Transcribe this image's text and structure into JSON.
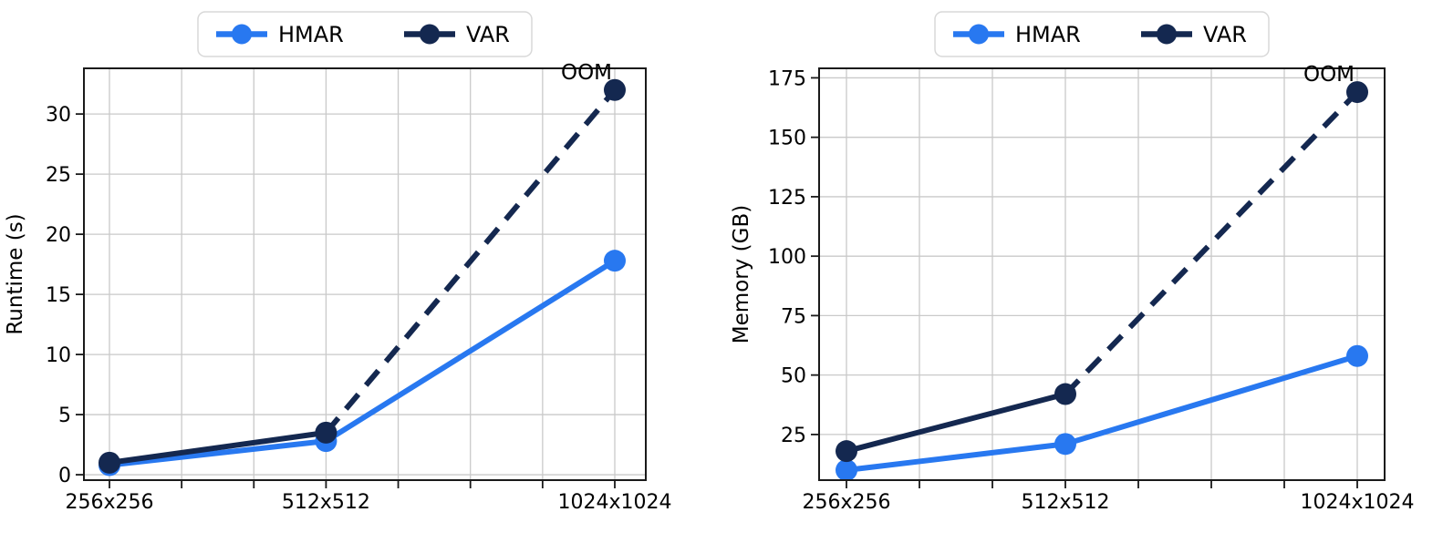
{
  "figure": {
    "background": "#ffffff",
    "description": "HMAR vs VAR efficiency comparison across image resolutions"
  },
  "colors": {
    "hmar": "#2878f0",
    "var": "#142850",
    "gridline": "#c9c9c9",
    "spine": "#1a1a1a",
    "text": "#000000",
    "legend_border": "#d8d8d8",
    "background": "#ffffff"
  },
  "chart_data": [
    {
      "name": "runtime-chart",
      "type": "line",
      "title": "",
      "xlabel": "",
      "ylabel": "Runtime (s)",
      "categories": [
        "256x256",
        "512x512",
        "1024x1024"
      ],
      "category_tick_indices": [
        0,
        3,
        7
      ],
      "minor_vertical_gridlines": 8,
      "grid": true,
      "yticks": [
        0,
        5,
        10,
        15,
        20,
        25,
        30
      ],
      "ylim": [
        -0.45,
        33.8
      ],
      "legend_position": "top-center",
      "series": [
        {
          "name": "HMAR",
          "color": "#2878f0",
          "marker": "circle",
          "line": "solid",
          "dashed_from": null,
          "values": [
            0.8,
            2.8,
            17.8
          ]
        },
        {
          "name": "VAR",
          "color": "#142850",
          "marker": "circle",
          "line": "solid-then-dashed",
          "dashed_from": 1,
          "values": [
            1.0,
            3.5,
            32.0
          ]
        }
      ],
      "annotation": {
        "text": "OOM",
        "series": "VAR",
        "point_index": 2
      }
    },
    {
      "name": "memory-chart",
      "type": "line",
      "title": "",
      "xlabel": "",
      "ylabel": "Memory (GB)",
      "categories": [
        "256x256",
        "512x512",
        "1024x1024"
      ],
      "category_tick_indices": [
        0,
        3,
        7
      ],
      "minor_vertical_gridlines": 8,
      "grid": true,
      "yticks": [
        25,
        50,
        75,
        100,
        125,
        150,
        175
      ],
      "ylim": [
        5.8,
        179.0
      ],
      "legend_position": "top-center",
      "series": [
        {
          "name": "HMAR",
          "color": "#2878f0",
          "marker": "circle",
          "line": "solid",
          "dashed_from": null,
          "values": [
            10,
            21,
            58
          ]
        },
        {
          "name": "VAR",
          "color": "#142850",
          "marker": "circle",
          "line": "solid-then-dashed",
          "dashed_from": 1,
          "values": [
            18,
            42,
            169
          ]
        }
      ],
      "annotation": {
        "text": "OOM",
        "series": "VAR",
        "point_index": 2
      }
    }
  ]
}
